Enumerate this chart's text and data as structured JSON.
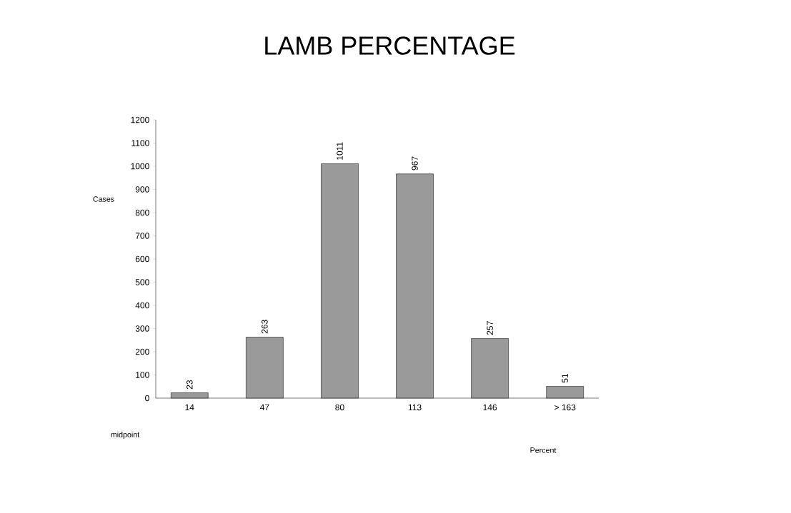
{
  "chart_data": {
    "type": "bar",
    "title": "LAMB PERCENTAGE",
    "annotations": [
      "Cases",
      "midpoint",
      "Percent"
    ],
    "categories": [
      "14",
      "47",
      "80",
      "113",
      "146",
      "> 163"
    ],
    "values": [
      23,
      263,
      1011,
      967,
      257,
      51
    ],
    "color": "#9a9a9a",
    "ylim": [
      0,
      1200
    ],
    "yticks": [
      0,
      100,
      200,
      300,
      400,
      500,
      600,
      700,
      800,
      900,
      1000,
      1100,
      1200
    ],
    "data_labels": true
  }
}
